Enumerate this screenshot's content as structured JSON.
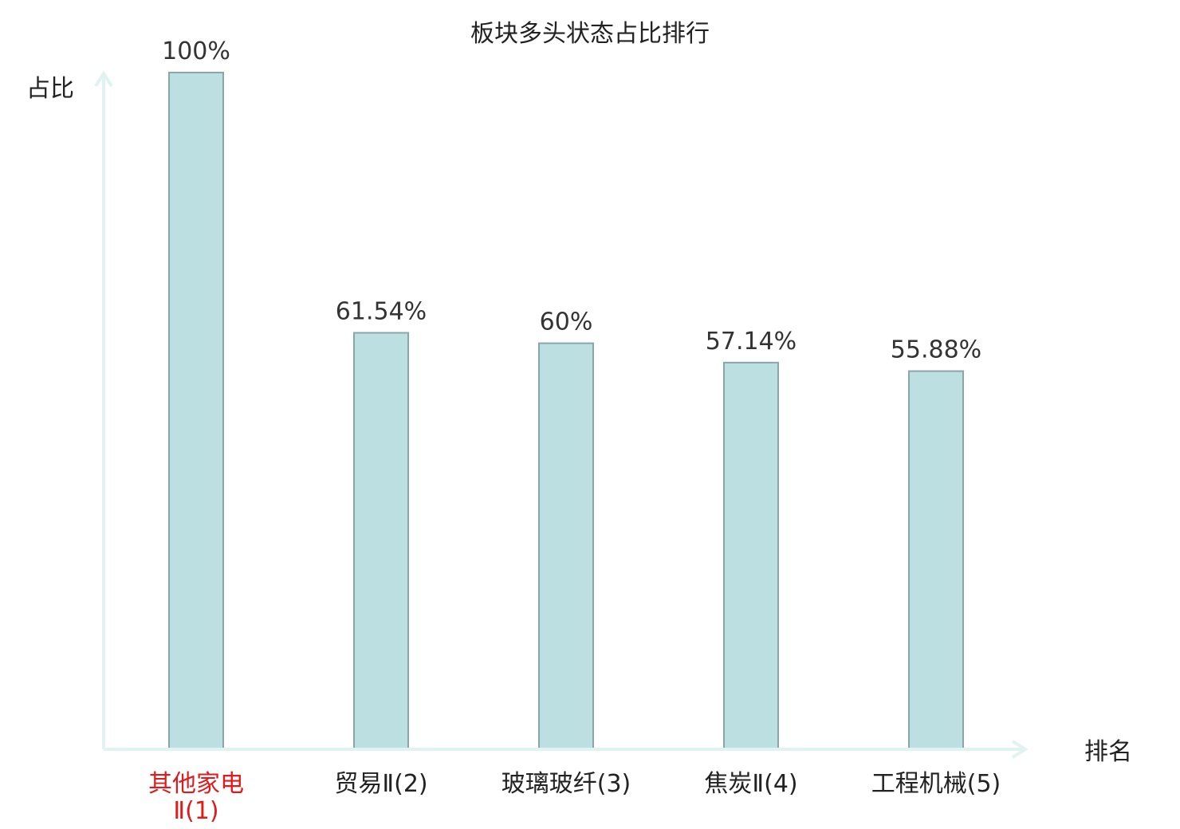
{
  "chart_data": {
    "type": "bar",
    "title": "板块多头状态占比排行",
    "xlabel": "排名",
    "ylabel": "占比",
    "categories": [
      [
        "其他家电",
        "Ⅱ(1)"
      ],
      [
        "贸易Ⅱ(2)"
      ],
      [
        "玻璃玻纤(3)"
      ],
      [
        "焦炭Ⅱ(4)"
      ],
      [
        "工程机械(5)"
      ]
    ],
    "values": [
      100,
      61.54,
      60,
      57.14,
      55.88
    ],
    "value_labels": [
      "100%",
      "61.54%",
      "60%",
      "57.14%",
      "55.88%"
    ],
    "highlight_index": 0,
    "ylim": [
      0,
      100
    ],
    "grid": false,
    "colors": {
      "bar_fill": "#bce0e1",
      "bar_stroke": "#8aa6a8",
      "axis": "#e0f3f1",
      "highlight_text": "#e31a1c"
    }
  }
}
